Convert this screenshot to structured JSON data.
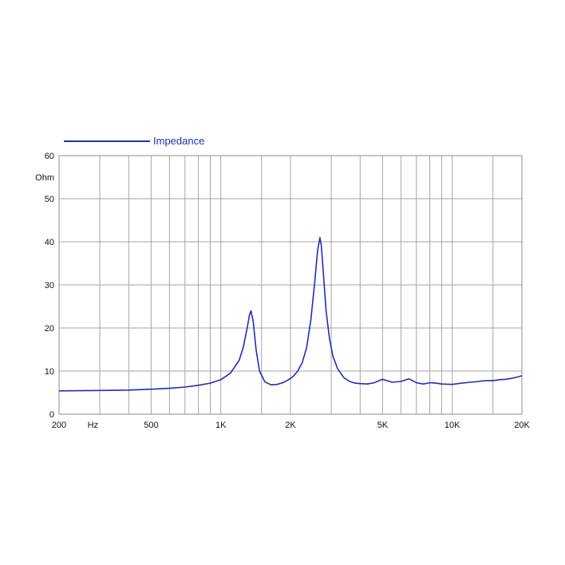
{
  "chart_data": {
    "type": "line",
    "x_scale": "log",
    "x_range": [
      200,
      20000
    ],
    "y_range": [
      0,
      60
    ],
    "grid": true,
    "legend_placement": "top-left",
    "ylabel": "Ohm",
    "xlabel": "Hz",
    "colors": {
      "series": "#1f2fb5",
      "grid": "#a6a6a6",
      "frame": "#8c8c8c"
    },
    "x_ticks": [
      {
        "value": 200,
        "label": "200"
      },
      {
        "value": 500,
        "label": "500"
      },
      {
        "value": 1000,
        "label": "1K"
      },
      {
        "value": 2000,
        "label": "2K"
      },
      {
        "value": 5000,
        "label": "5K"
      },
      {
        "value": 10000,
        "label": "10K"
      },
      {
        "value": 20000,
        "label": "20K"
      }
    ],
    "x_gridlines": [
      300,
      400,
      500,
      600,
      700,
      800,
      900,
      1000,
      1500,
      2000,
      3000,
      4000,
      5000,
      6000,
      7000,
      8000,
      9000,
      10000,
      15000
    ],
    "y_ticks": [
      0,
      10,
      20,
      30,
      40,
      50,
      60
    ],
    "series": [
      {
        "name": "Impedance",
        "x": [
          200,
          300,
          400,
          500,
          600,
          700,
          800,
          900,
          1000,
          1100,
          1200,
          1250,
          1300,
          1330,
          1350,
          1380,
          1420,
          1470,
          1550,
          1650,
          1750,
          1850,
          1950,
          2050,
          2150,
          2250,
          2350,
          2450,
          2550,
          2620,
          2680,
          2720,
          2780,
          2850,
          2950,
          3050,
          3200,
          3400,
          3600,
          3800,
          4000,
          4300,
          4600,
          5000,
          5500,
          6000,
          6500,
          7000,
          7500,
          8000,
          8500,
          9000,
          10000,
          11000,
          12000,
          13000,
          14000,
          15000,
          16000,
          17000,
          18000,
          19000,
          20000
        ],
        "y": [
          5.4,
          5.5,
          5.6,
          5.8,
          6.0,
          6.3,
          6.7,
          7.2,
          8.0,
          9.5,
          12.5,
          15.5,
          20.0,
          23.0,
          24.0,
          21.5,
          15.0,
          10.0,
          7.5,
          6.8,
          6.9,
          7.3,
          7.9,
          8.7,
          10.0,
          12.0,
          15.5,
          22.0,
          31.0,
          38.0,
          41.0,
          39.0,
          32.0,
          24.0,
          17.5,
          13.5,
          10.5,
          8.5,
          7.6,
          7.2,
          7.1,
          7.0,
          7.3,
          8.1,
          7.4,
          7.6,
          8.2,
          7.3,
          7.0,
          7.3,
          7.2,
          7.0,
          6.9,
          7.2,
          7.4,
          7.6,
          7.8,
          7.8,
          8.0,
          8.1,
          8.3,
          8.6,
          8.9
        ]
      }
    ]
  }
}
